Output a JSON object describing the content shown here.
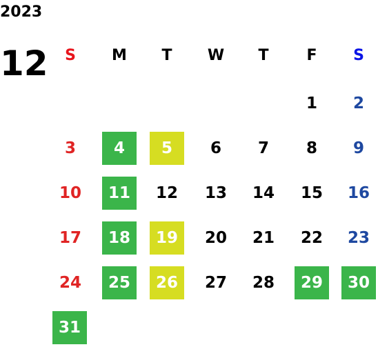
{
  "year": "2023",
  "month": "12",
  "weekdays": [
    "S",
    "M",
    "T",
    "W",
    "T",
    "F",
    "S"
  ],
  "header_colors": [
    "#e8141c",
    "#000000",
    "#000000",
    "#000000",
    "#000000",
    "#000000",
    "#0a14e6"
  ],
  "day_colors": [
    "#e02424",
    "#000000",
    "#000000",
    "#000000",
    "#000000",
    "#000000",
    "#1e48a0"
  ],
  "weeks": [
    [
      null,
      null,
      null,
      null,
      null,
      {
        "day": 1
      },
      {
        "day": 2
      }
    ],
    [
      {
        "day": 3
      },
      {
        "day": 4,
        "bg": "#3bb54a"
      },
      {
        "day": 5,
        "bg": "#d6dd22"
      },
      {
        "day": 6
      },
      {
        "day": 7
      },
      {
        "day": 8
      },
      {
        "day": 9
      }
    ],
    [
      {
        "day": 10
      },
      {
        "day": 11,
        "bg": "#3bb54a"
      },
      {
        "day": 12
      },
      {
        "day": 13
      },
      {
        "day": 14
      },
      {
        "day": 15
      },
      {
        "day": 16
      }
    ],
    [
      {
        "day": 17
      },
      {
        "day": 18,
        "bg": "#3bb54a"
      },
      {
        "day": 19,
        "bg": "#d6dd22"
      },
      {
        "day": 20
      },
      {
        "day": 21
      },
      {
        "day": 22
      },
      {
        "day": 23
      }
    ],
    [
      {
        "day": 24
      },
      {
        "day": 25,
        "bg": "#3bb54a"
      },
      {
        "day": 26,
        "bg": "#d6dd22"
      },
      {
        "day": 27
      },
      {
        "day": 28
      },
      {
        "day": 29,
        "bg": "#3bb54a"
      },
      {
        "day": 30,
        "bg": "#3bb54a"
      }
    ],
    [
      {
        "day": 31,
        "bg": "#3bb54a"
      },
      null,
      null,
      null,
      null,
      null,
      null
    ]
  ]
}
